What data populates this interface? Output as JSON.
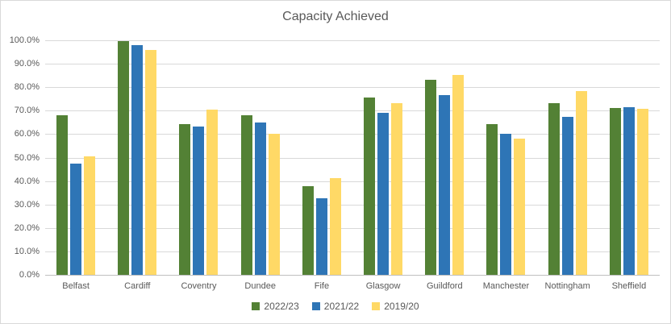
{
  "chart_data": {
    "type": "bar",
    "title": "Capacity Achieved",
    "categories": [
      "Belfast",
      "Cardiff",
      "Coventry",
      "Dundee",
      "Fife",
      "Glasgow",
      "Guildford",
      "Manchester",
      "Nottingham",
      "Sheffield"
    ],
    "series": [
      {
        "name": "2022/23",
        "color": "#538135",
        "values": [
          67.9,
          99.5,
          64.3,
          67.9,
          37.9,
          75.5,
          83.0,
          64.1,
          73.2,
          71.0
        ]
      },
      {
        "name": "2021/22",
        "color": "#2E75B6",
        "values": [
          47.5,
          97.9,
          63.2,
          65.0,
          32.8,
          69.2,
          76.5,
          60.3,
          67.5,
          71.5
        ]
      },
      {
        "name": "2019/20",
        "color": "#FFD966",
        "values": [
          50.4,
          96.0,
          70.5,
          60.0,
          41.2,
          73.2,
          85.2,
          58.1,
          78.5,
          70.7
        ]
      }
    ],
    "xlabel": "",
    "ylabel": "",
    "ylim": [
      0,
      100
    ],
    "ytick_step": 10,
    "ytick_labels": [
      "0.0%",
      "10.0%",
      "20.0%",
      "30.0%",
      "40.0%",
      "50.0%",
      "60.0%",
      "70.0%",
      "80.0%",
      "90.0%",
      "100.0%"
    ],
    "grid": true,
    "legend_position": "bottom"
  },
  "colors": {
    "background": "#FFFFFF",
    "chart_border": "#D9D9D9",
    "gridline": "#D9D9D9",
    "axis_line": "#BFBFBF",
    "title_text": "#595959",
    "axis_text": "#595959",
    "legend_text": "#595959"
  }
}
